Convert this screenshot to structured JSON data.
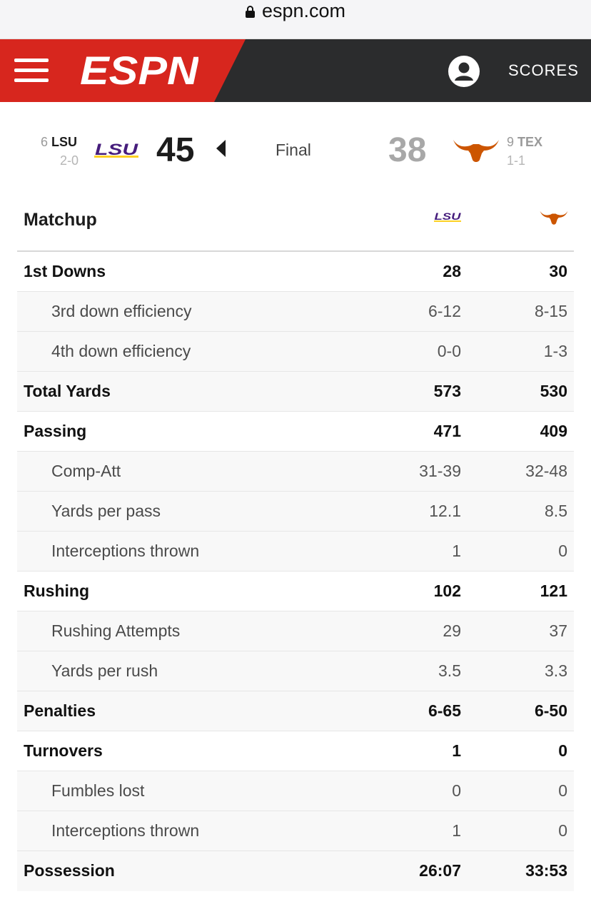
{
  "browser": {
    "url": "espn.com"
  },
  "header": {
    "menu_icon": "hamburger-menu-icon",
    "logo_text": "ESPN",
    "profile_icon": "user-profile-icon",
    "scores_label": "SCORES",
    "brand_color": "#d7261e"
  },
  "game": {
    "away": {
      "rank": "6",
      "abbr": "LSU",
      "record": "2-0",
      "score": "45",
      "color": "#461d7c"
    },
    "home": {
      "rank": "9",
      "abbr": "TEX",
      "record": "1-1",
      "score": "38",
      "color": "#cc5500"
    },
    "status": "Final",
    "winner_indicator": "caret-left-icon"
  },
  "matchup": {
    "title": "Matchup",
    "team1_logo": "LSU",
    "rows": [
      {
        "label": "1st Downs",
        "lsu": "28",
        "tex": "30",
        "type": "main"
      },
      {
        "label": "3rd down efficiency",
        "lsu": "6-12",
        "tex": "8-15",
        "type": "sub"
      },
      {
        "label": "4th down efficiency",
        "lsu": "0-0",
        "tex": "1-3",
        "type": "sub"
      },
      {
        "label": "Total Yards",
        "lsu": "573",
        "tex": "530",
        "type": "main"
      },
      {
        "label": "Passing",
        "lsu": "471",
        "tex": "409",
        "type": "main"
      },
      {
        "label": "Comp-Att",
        "lsu": "31-39",
        "tex": "32-48",
        "type": "sub"
      },
      {
        "label": "Yards per pass",
        "lsu": "12.1",
        "tex": "8.5",
        "type": "sub"
      },
      {
        "label": "Interceptions thrown",
        "lsu": "1",
        "tex": "0",
        "type": "sub"
      },
      {
        "label": "Rushing",
        "lsu": "102",
        "tex": "121",
        "type": "main"
      },
      {
        "label": "Rushing Attempts",
        "lsu": "29",
        "tex": "37",
        "type": "sub"
      },
      {
        "label": "Yards per rush",
        "lsu": "3.5",
        "tex": "3.3",
        "type": "sub"
      },
      {
        "label": "Penalties",
        "lsu": "6-65",
        "tex": "6-50",
        "type": "main"
      },
      {
        "label": "Turnovers",
        "lsu": "1",
        "tex": "0",
        "type": "main"
      },
      {
        "label": "Fumbles lost",
        "lsu": "0",
        "tex": "0",
        "type": "sub"
      },
      {
        "label": "Interceptions thrown",
        "lsu": "1",
        "tex": "0",
        "type": "sub"
      },
      {
        "label": "Possession",
        "lsu": "26:07",
        "tex": "33:53",
        "type": "main"
      }
    ]
  }
}
